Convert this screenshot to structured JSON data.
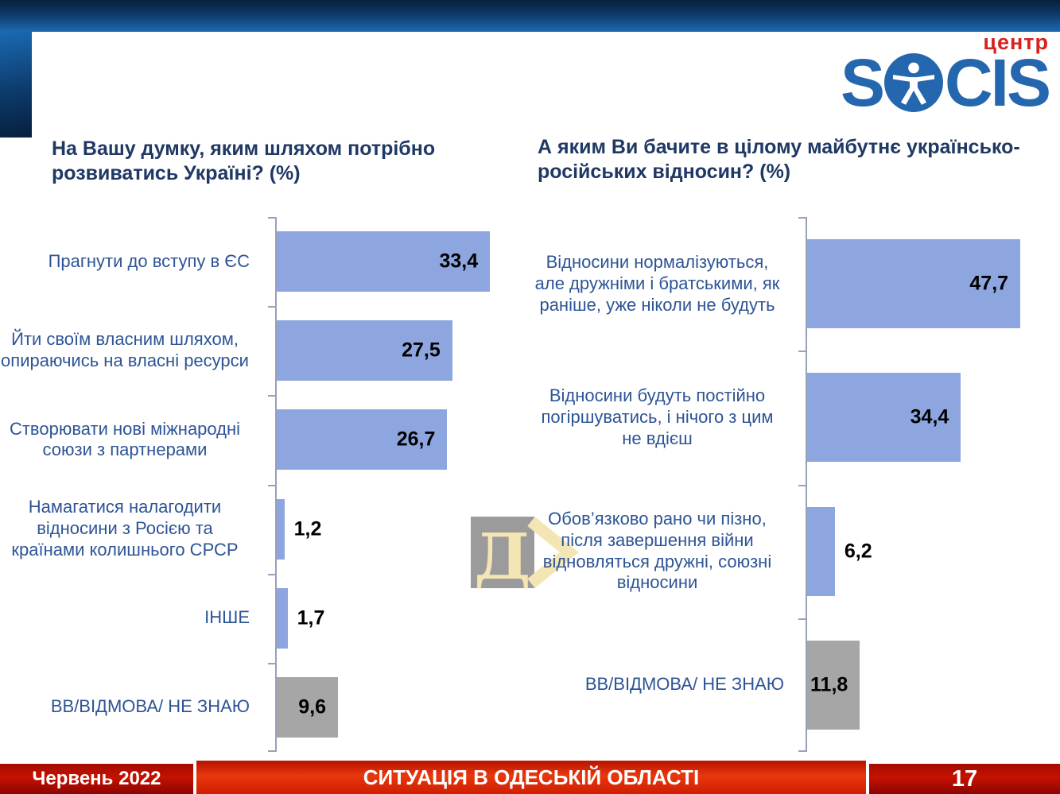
{
  "logo": {
    "prefix": "S",
    "suffix": "CIS",
    "center_label": "центр"
  },
  "colors": {
    "bar_blue": "#8ea6e0",
    "bar_gray": "#a6a6a6",
    "title_text": "#1f3864",
    "category_text": "#2d5496",
    "logo_blue": "#2467ae",
    "logo_red": "#d6231f",
    "axis_line": "#98a0bc",
    "watermark_gray": "#9b9b9b",
    "watermark_cream": "#f4e5b4",
    "footer_red": "#c51200"
  },
  "watermark": {
    "letter": "Д"
  },
  "chart_data": [
    {
      "type": "bar",
      "orientation": "horizontal",
      "title": "На Вашу думку, яким шляхом потрібно розвиватись Україні? (%)",
      "categories": [
        "Прагнути до вступу в ЄС",
        "Йти своїм власним шляхом, опираючись на власні ресурси",
        "Створювати нові міжнародні союзи з партнерами",
        "Намагатися налагодити відносини з Росією та країнами колишнього СРСР",
        "ІНШЕ",
        "ВВ/ВІДМОВА/ НЕ ЗНАЮ"
      ],
      "values": [
        33.4,
        27.5,
        26.7,
        1.2,
        1.7,
        9.6
      ],
      "value_labels": [
        "33,4",
        "27,5",
        "26,7",
        "1,2",
        "1,7",
        "9,6"
      ],
      "bar_colors": [
        "blue",
        "blue",
        "blue",
        "blue",
        "blue",
        "gray"
      ],
      "label_placement": [
        "inside",
        "inside",
        "inside",
        "outside",
        "outside",
        "inside"
      ],
      "xlim": [
        0,
        35
      ],
      "xlabel": "",
      "ylabel": "",
      "grid": false,
      "legend": "none"
    },
    {
      "type": "bar",
      "orientation": "horizontal",
      "title": "А яким Ви бачите в цілому майбутнє українсько-російських відносин? (%)",
      "categories": [
        "Відносини нормалізуються, але дружніми і братськими, як раніше, уже ніколи не будуть",
        "Відносини будуть постійно погіршуватись, і нічого з цим не вдієш",
        "Обов’язково рано чи пізно, після завершення війни відновляться дружні, союзні відносини",
        "ВВ/ВІДМОВА/ НЕ ЗНАЮ"
      ],
      "values": [
        47.7,
        34.4,
        6.2,
        11.8
      ],
      "value_labels": [
        "47,7",
        "34,4",
        "6,2",
        "11,8"
      ],
      "bar_colors": [
        "blue",
        "blue",
        "blue",
        "gray"
      ],
      "label_placement": [
        "inside",
        "inside",
        "outside",
        "inside"
      ],
      "xlim": [
        0,
        50
      ],
      "xlabel": "",
      "ylabel": "",
      "grid": false,
      "legend": "none"
    }
  ],
  "footer": {
    "date_label": "Червень 2022",
    "title": "СИТУАЦІЯ В ОДЕСЬКІЙ ОБЛАСТІ",
    "page_number": "17"
  }
}
